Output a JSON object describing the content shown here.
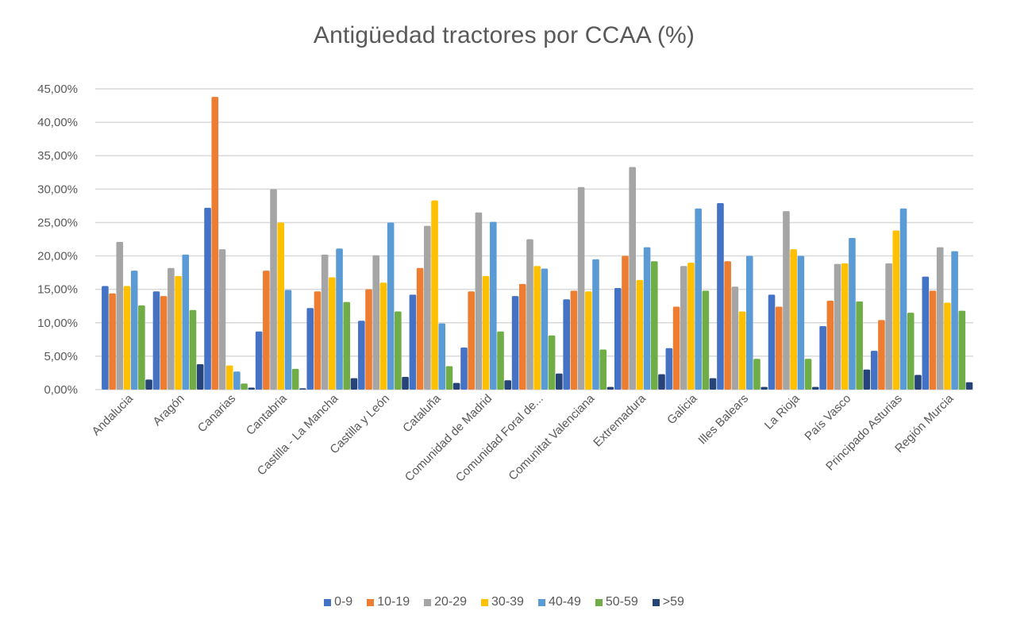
{
  "chart_data": {
    "type": "bar",
    "title": "Antigüedad tractores por CCAA (%)",
    "xlabel": "",
    "ylabel": "",
    "ylim": [
      0,
      45
    ],
    "y_ticks": [
      0,
      5,
      10,
      15,
      20,
      25,
      30,
      35,
      40,
      45
    ],
    "y_tick_labels": [
      "0,00%",
      "5,00%",
      "10,00%",
      "15,00%",
      "20,00%",
      "25,00%",
      "30,00%",
      "35,00%",
      "40,00%",
      "45,00%"
    ],
    "grid": true,
    "legend_position": "bottom",
    "categories": [
      "Andalucia",
      "Aragón",
      "Canarias",
      "Cantabria",
      "Castilla - La Mancha",
      "Castilla y León",
      "Cataluña",
      "Comunidad de Madrid",
      "Comunidad Foral de...",
      "Comunitat Valenciana",
      "Extremadura",
      "Galicia",
      "Illes Balears",
      "La Rioja",
      "País Vasco",
      "Principado Asturias",
      "Región Murcia"
    ],
    "series": [
      {
        "name": "0-9",
        "color": "#4472C4",
        "values": [
          15.5,
          14.7,
          27.2,
          8.7,
          12.2,
          10.3,
          14.2,
          6.3,
          14.0,
          13.5,
          15.2,
          6.2,
          27.9,
          14.2,
          9.5,
          5.8,
          16.9
        ]
      },
      {
        "name": "10-19",
        "color": "#ED7D31",
        "values": [
          14.4,
          14.0,
          43.8,
          17.8,
          14.7,
          15.0,
          18.2,
          14.7,
          15.8,
          14.8,
          20.0,
          12.4,
          19.2,
          12.4,
          13.3,
          10.4,
          14.8
        ]
      },
      {
        "name": "20-29",
        "color": "#A5A5A5",
        "values": [
          22.1,
          18.2,
          21.0,
          30.0,
          20.2,
          20.1,
          24.5,
          26.5,
          22.5,
          30.3,
          33.3,
          18.5,
          15.4,
          26.7,
          18.8,
          18.9,
          21.3
        ]
      },
      {
        "name": "30-39",
        "color": "#FFC000",
        "values": [
          15.5,
          17.0,
          3.6,
          25.0,
          16.8,
          16.0,
          28.3,
          17.0,
          18.5,
          14.7,
          16.4,
          19.0,
          11.7,
          21.0,
          18.9,
          23.8,
          13.0
        ]
      },
      {
        "name": "40-49",
        "color": "#5B9BD5",
        "values": [
          17.8,
          20.2,
          2.7,
          14.9,
          21.1,
          25.0,
          9.9,
          25.1,
          18.1,
          19.5,
          21.3,
          27.1,
          20.0,
          20.0,
          22.7,
          27.1,
          20.7
        ]
      },
      {
        "name": "50-59",
        "color": "#70AD47",
        "values": [
          12.6,
          11.9,
          0.9,
          3.1,
          13.1,
          11.7,
          3.5,
          8.7,
          8.1,
          6.0,
          19.2,
          14.8,
          4.6,
          4.6,
          13.2,
          11.5,
          11.8
        ]
      },
      {
        "name": ">59",
        "color": "#264478",
        "values": [
          1.5,
          3.8,
          0.3,
          0.2,
          1.7,
          1.9,
          1.0,
          1.4,
          2.4,
          0.4,
          2.3,
          1.7,
          0.4,
          0.4,
          3.0,
          2.2,
          1.1
        ]
      }
    ]
  }
}
